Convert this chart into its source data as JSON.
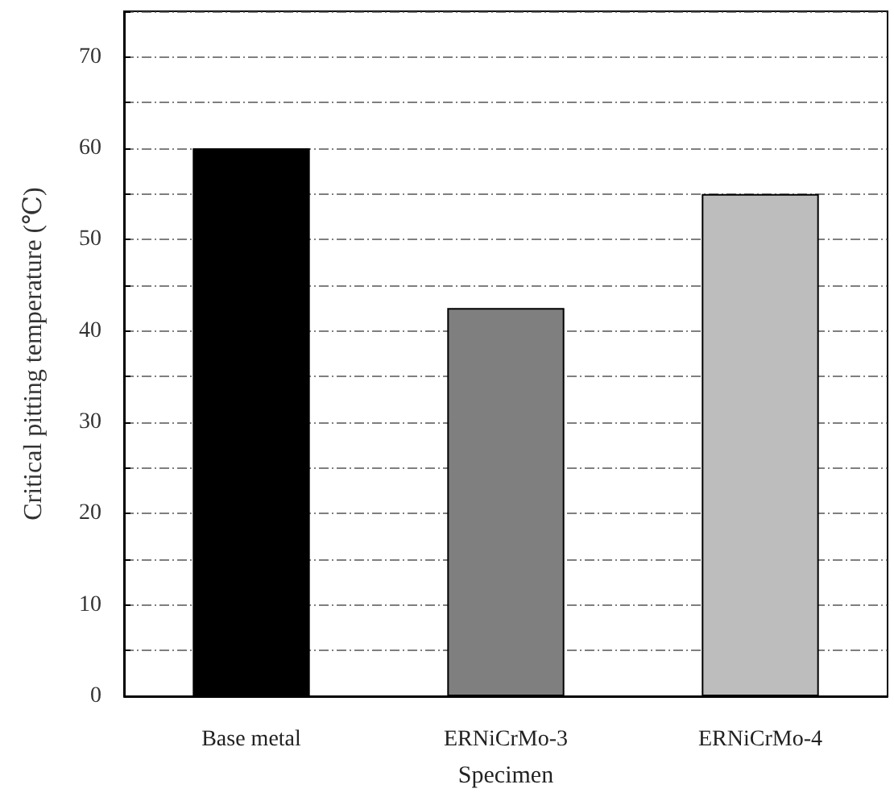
{
  "chart_data": {
    "type": "bar",
    "xlabel": "Specimen",
    "ylabel": "Critical pitting temperature (℃)",
    "categories": [
      "Base metal",
      "ERNiCrMo-3",
      "ERNiCrMo-4"
    ],
    "values": [
      60,
      42.5,
      55
    ],
    "colors": [
      "#000000",
      "#7f7f7f",
      "#bdbdbd"
    ],
    "ylim": [
      0,
      75
    ],
    "yticks": [
      0,
      {
        "value": 5,
        "label": null
      },
      10,
      {
        "value": 15,
        "label": null
      },
      20,
      {
        "value": 25,
        "label": null
      },
      30,
      {
        "value": 35,
        "label": null
      },
      40,
      {
        "value": 45,
        "label": null
      },
      50,
      {
        "value": 55,
        "label": null
      },
      60,
      {
        "value": 65,
        "label": null
      },
      70,
      {
        "value": 75,
        "label": null
      }
    ],
    "grid": "y"
  }
}
